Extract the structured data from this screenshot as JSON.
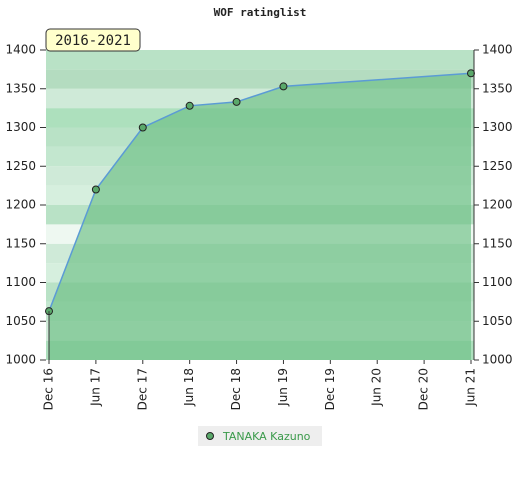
{
  "chart_data": {
    "type": "area",
    "title": "WOF ratinglist",
    "period_label": "2016-2021",
    "xticks": [
      "Dec 16",
      "Jun 17",
      "Dec 17",
      "Jun 18",
      "Dec 18",
      "Jun 19",
      "Dec 19",
      "Jun 20",
      "Dec 20",
      "Jun 21"
    ],
    "series": [
      {
        "name": "TANAKA Kazuno",
        "color": "#5b9bd5",
        "fill": "#6cbf84",
        "marker_color": "#5aa86a",
        "x": [
          "Dec 16",
          "Jun 17",
          "Dec 17",
          "Jun 18",
          "Dec 18",
          "Jun 19",
          "Jun 21"
        ],
        "values": [
          1063,
          1220,
          1300,
          1328,
          1333,
          1353,
          1370
        ]
      }
    ],
    "ylim": [
      1000,
      1400
    ],
    "yticks": [
      1000,
      1050,
      1100,
      1150,
      1200,
      1250,
      1300,
      1350,
      1400
    ],
    "y2lim": [
      1000,
      1400
    ],
    "y2ticks": [
      1000,
      1050,
      1100,
      1150,
      1200,
      1250,
      1300,
      1350,
      1400
    ]
  }
}
